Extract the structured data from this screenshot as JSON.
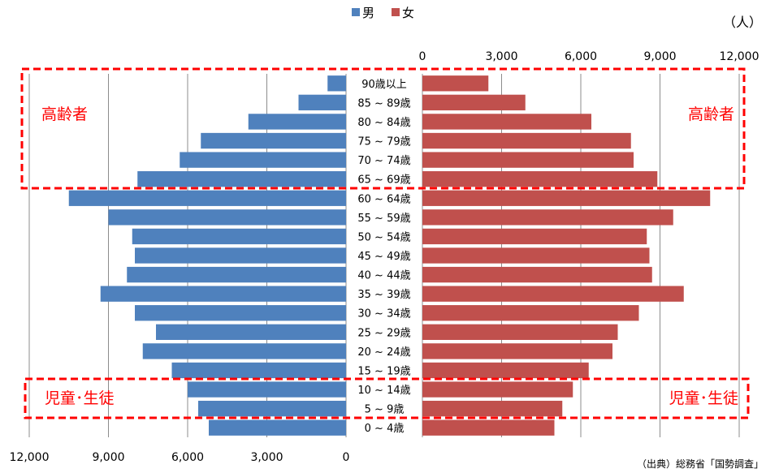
{
  "chart_data": {
    "type": "bar",
    "orientation": "horizontal",
    "layout": "population-pyramid",
    "unit": "（人）",
    "legend": {
      "position": "top-center",
      "entries": [
        "男",
        "女"
      ]
    },
    "categories": [
      "90歳以上",
      "85 ~ 89歳",
      "80 ~ 84歳",
      "75 ~ 79歳",
      "70 ~ 74歳",
      "65 ~ 69歳",
      "60 ~ 64歳",
      "55 ~ 59歳",
      "50 ~ 54歳",
      "45 ~ 49歳",
      "40 ~ 44歳",
      "35 ~ 39歳",
      "30 ~ 34歳",
      "25 ~ 29歳",
      "20 ~ 24歳",
      "15 ~ 19歳",
      "10 ~ 14歳",
      "5 ~ 9歳",
      "0 ~ 4歳"
    ],
    "series": [
      {
        "name": "男",
        "color": "#4f81bd",
        "side": "left",
        "values": [
          700,
          1800,
          3700,
          5500,
          6300,
          7900,
          10500,
          9000,
          8100,
          8000,
          8300,
          9300,
          8000,
          7200,
          7700,
          6600,
          6000,
          5600,
          5200
        ]
      },
      {
        "name": "女",
        "color": "#c0504d",
        "side": "right",
        "values": [
          2500,
          3900,
          6400,
          7900,
          8000,
          8900,
          10900,
          9500,
          8500,
          8600,
          8700,
          9900,
          8200,
          7400,
          7200,
          6300,
          5700,
          5300,
          5000
        ]
      }
    ],
    "top_axis": {
      "range": [
        0,
        12000
      ],
      "ticks": [
        "0",
        "3,000",
        "6,000",
        "9,000",
        "12,000"
      ]
    },
    "bottom_axis": {
      "range": [
        12000,
        0
      ],
      "ticks": [
        "12,000",
        "9,000",
        "6,000",
        "3,000",
        "0"
      ]
    },
    "grid": true,
    "annotations": [
      {
        "type": "dashed-box",
        "color": "#ff0000",
        "groups": [
          "90歳以上",
          "85 ~ 89歳",
          "80 ~ 84歳",
          "75 ~ 79歳",
          "70 ~ 74歳",
          "65 ~ 69歳"
        ],
        "label_left": "高齢者",
        "label_right": "高齢者"
      },
      {
        "type": "dashed-box",
        "color": "#ff0000",
        "groups": [
          "10 ~ 14歳",
          "5 ~ 9歳"
        ],
        "label_left": "児童･生徒",
        "label_right": "児童･生徒"
      }
    ],
    "source": "（出典）総務省「国勢調査」"
  }
}
